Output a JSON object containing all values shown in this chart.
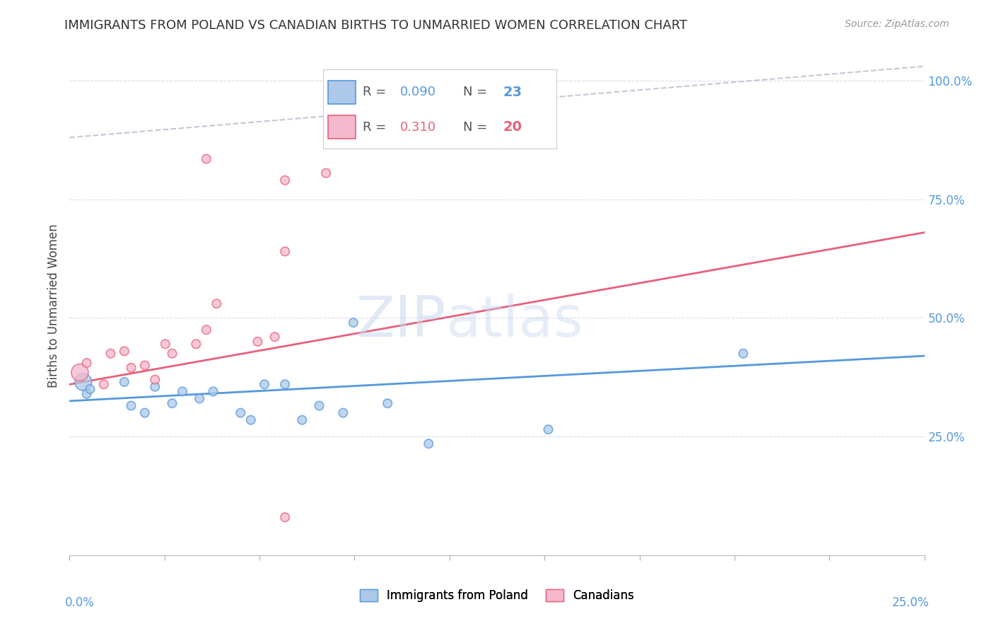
{
  "title": "IMMIGRANTS FROM POLAND VS CANADIAN BIRTHS TO UNMARRIED WOMEN CORRELATION CHART",
  "source": "Source: ZipAtlas.com",
  "ylabel": "Births to Unmarried Women",
  "xlim": [
    0.0,
    0.25
  ],
  "ylim": [
    0.0,
    1.05
  ],
  "blue_label": "Immigrants from Poland",
  "pink_label": "Canadians",
  "blue_color": "#adc8e8",
  "pink_color": "#f5b8cc",
  "blue_line_color": "#5599dd",
  "pink_line_color": "#e8607a",
  "dashed_line_color": "#c0c0d0",
  "background_color": "#ffffff",
  "grid_color": "#dcdce8",
  "blue_x": [
    0.004,
    0.005,
    0.006,
    0.016,
    0.018,
    0.022,
    0.025,
    0.03,
    0.033,
    0.038,
    0.042,
    0.05,
    0.053,
    0.057,
    0.063,
    0.068,
    0.073,
    0.08,
    0.083,
    0.093,
    0.105,
    0.14,
    0.197
  ],
  "blue_y": [
    0.365,
    0.34,
    0.35,
    0.365,
    0.315,
    0.3,
    0.355,
    0.32,
    0.345,
    0.33,
    0.345,
    0.3,
    0.285,
    0.36,
    0.36,
    0.285,
    0.315,
    0.3,
    0.49,
    0.32,
    0.235,
    0.265,
    0.425
  ],
  "blue_sizes": [
    300,
    80,
    80,
    80,
    80,
    80,
    80,
    80,
    80,
    80,
    80,
    80,
    80,
    80,
    80,
    80,
    80,
    80,
    80,
    80,
    80,
    80,
    80
  ],
  "pink_x": [
    0.003,
    0.005,
    0.01,
    0.012,
    0.016,
    0.018,
    0.022,
    0.025,
    0.028,
    0.03,
    0.037,
    0.04,
    0.043,
    0.055,
    0.06,
    0.063,
    0.075,
    0.04,
    0.063,
    0.063
  ],
  "pink_y": [
    0.385,
    0.405,
    0.36,
    0.425,
    0.43,
    0.395,
    0.4,
    0.37,
    0.445,
    0.425,
    0.445,
    0.475,
    0.53,
    0.45,
    0.46,
    0.79,
    0.805,
    0.835,
    0.64,
    0.08
  ],
  "pink_sizes": [
    300,
    80,
    80,
    80,
    80,
    80,
    80,
    80,
    80,
    80,
    80,
    80,
    80,
    80,
    80,
    80,
    80,
    80,
    80,
    80
  ],
  "blue_intercept": 0.325,
  "blue_slope": 0.38,
  "pink_intercept": 0.36,
  "pink_slope": 1.28,
  "R_blue": 0.09,
  "N_blue": 23,
  "R_pink": 0.31,
  "N_pink": 20
}
